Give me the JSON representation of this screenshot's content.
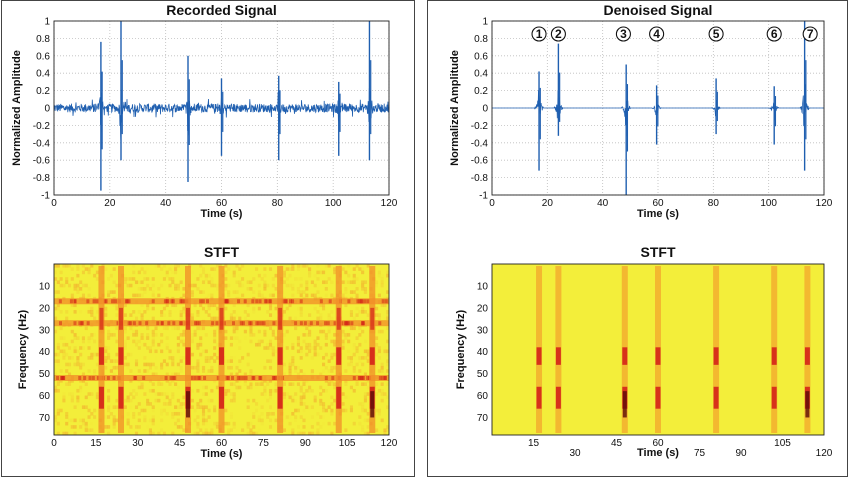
{
  "colors": {
    "signal": "#1f5fb0",
    "spec_base": "#f3ee3a",
    "spec_orange": "#f28c28",
    "spec_red": "#d42418",
    "spec_dark": "#5a0a08",
    "grid": "#bdbdbd"
  },
  "chart_data": [
    {
      "id": "recorded-signal",
      "type": "line",
      "title": "Recorded Signal",
      "xlabel": "Time (s)",
      "ylabel": "Normalized Amplitude",
      "xlim": [
        0,
        120
      ],
      "ylim": [
        -1,
        1
      ],
      "xticks": [
        0,
        20,
        40,
        60,
        80,
        100,
        120
      ],
      "yticks": [
        -1,
        -0.8,
        -0.6,
        -0.4,
        -0.2,
        0,
        0.2,
        0.4,
        0.6,
        0.8,
        1
      ],
      "ytick_labels": [
        "-1",
        "-0.8",
        "-0.6",
        "-0.4",
        "-0.2",
        "0",
        "0.2",
        "0.4",
        "0.6",
        "0.8",
        "1"
      ],
      "grid": true,
      "noise_level": 0.05,
      "events": [
        {
          "t": 16.8,
          "pos": 0.76,
          "neg": -0.95
        },
        {
          "t": 24.0,
          "pos": 1.0,
          "neg": -0.6
        },
        {
          "t": 48.0,
          "pos": 0.6,
          "neg": -0.85
        },
        {
          "t": 60.0,
          "pos": 0.34,
          "neg": -0.55
        },
        {
          "t": 80.5,
          "pos": 0.37,
          "neg": -0.6
        },
        {
          "t": 102.0,
          "pos": 0.3,
          "neg": -0.55
        },
        {
          "t": 113.0,
          "pos": 1.0,
          "neg": -0.6
        }
      ]
    },
    {
      "id": "denoised-signal",
      "type": "line",
      "title": "Denoised Signal",
      "xlabel": "Time (s)",
      "ylabel": "Normalized Amplitude",
      "xlim": [
        0,
        120
      ],
      "ylim": [
        -1,
        1
      ],
      "xticks": [
        0,
        20,
        40,
        60,
        80,
        100,
        120
      ],
      "yticks": [
        -1,
        -0.8,
        -0.6,
        -0.4,
        -0.2,
        0,
        0.2,
        0.4,
        0.6,
        0.8,
        1
      ],
      "ytick_labels": [
        "-1",
        "-0.8",
        "-0.6",
        "-0.4",
        "-0.2",
        "0",
        "0.2",
        "0.4",
        "0.6",
        "0.8",
        "1"
      ],
      "grid": true,
      "noise_level": 0.0,
      "events": [
        {
          "t": 17.0,
          "pos": 0.42,
          "neg": -0.72
        },
        {
          "t": 24.0,
          "pos": 0.74,
          "neg": -0.32
        },
        {
          "t": 48.5,
          "pos": 0.5,
          "neg": -1.0
        },
        {
          "t": 59.5,
          "pos": 0.26,
          "neg": -0.42
        },
        {
          "t": 81.0,
          "pos": 0.34,
          "neg": -0.3
        },
        {
          "t": 102.0,
          "pos": 0.25,
          "neg": -0.42
        },
        {
          "t": 113.0,
          "pos": 1.0,
          "neg": -0.72
        }
      ],
      "annotations": [
        {
          "label": "1",
          "t": 17.0
        },
        {
          "label": "2",
          "t": 24.0
        },
        {
          "label": "3",
          "t": 47.5
        },
        {
          "label": "4",
          "t": 59.5
        },
        {
          "label": "5",
          "t": 81.0
        },
        {
          "label": "6",
          "t": 102.0
        },
        {
          "label": "7",
          "t": 115.0
        }
      ]
    },
    {
      "id": "recorded-stft",
      "type": "heatmap",
      "title": "STFT",
      "xlabel": "Time (s)",
      "ylabel": "Frequency (Hz)",
      "xlim": [
        0,
        120
      ],
      "ylim": [
        0,
        78
      ],
      "xticks": [
        0,
        15,
        30,
        45,
        60,
        75,
        90,
        105,
        120
      ],
      "yticks": [
        10,
        20,
        30,
        40,
        50,
        60,
        70
      ],
      "bands_hz": [
        17,
        27,
        52
      ],
      "event_times": [
        17,
        24,
        48,
        60,
        81,
        102,
        114
      ],
      "background": "noisy"
    },
    {
      "id": "denoised-stft",
      "type": "heatmap",
      "title": "STFT",
      "xlabel": "Time (s)",
      "ylabel": "Frequency (Hz)",
      "xlim": [
        0,
        120
      ],
      "ylim": [
        0,
        78
      ],
      "xticks": [
        15,
        30,
        45,
        60,
        75,
        90,
        105,
        120
      ],
      "xticks_top_row": [
        15,
        45,
        60,
        105
      ],
      "yticks": [
        10,
        20,
        30,
        40,
        50,
        60,
        70
      ],
      "bands_hz": [],
      "event_times": [
        17,
        24,
        48,
        60,
        81,
        102,
        114
      ],
      "background": "clean"
    }
  ]
}
